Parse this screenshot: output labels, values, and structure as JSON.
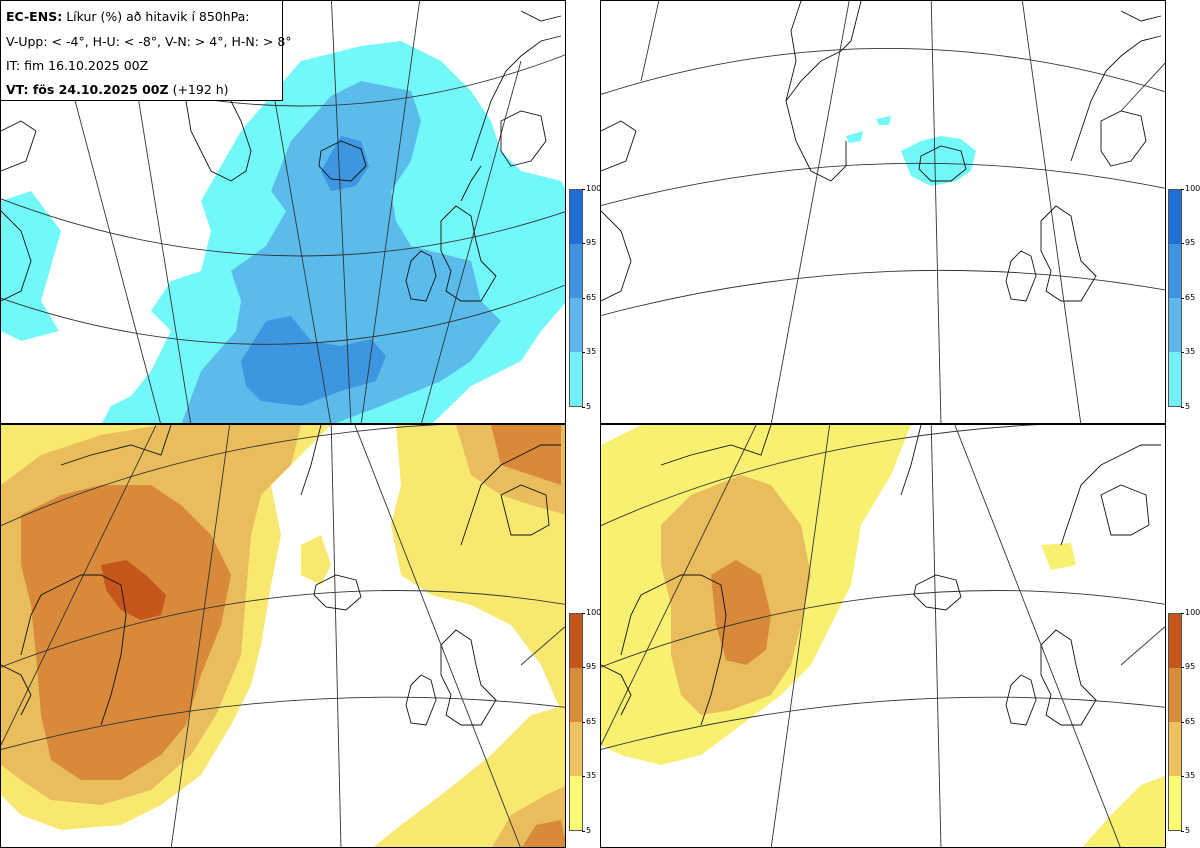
{
  "header": {
    "model": "EC-ENS:",
    "title": "Líkur (%) að hitavik í 850hPa:",
    "legend": "V-Upp: < -4°, H-U: < -8°, V-N: > 4°, H-N: > 8°",
    "initial_time": "IT: fim 16.10.2025 00Z",
    "valid_label": "VT: fös 24.10.2025 00Z",
    "lead_time": "(+192 h)"
  },
  "colorbars": {
    "ticks": [
      "100",
      "95",
      "65",
      "35",
      "5"
    ],
    "cold_colors": [
      "#1f6fd6",
      "#3f93e0",
      "#5fb6ec",
      "#72f0f8"
    ],
    "warm_colors": [
      "#c4561a",
      "#d98b3c",
      "#eec25e",
      "#fafc72"
    ]
  },
  "panels": [
    {
      "id": "upper-left",
      "variable": "probability anomaly < -4°",
      "palette": "cold"
    },
    {
      "id": "upper-right",
      "variable": "probability anomaly < -8°",
      "palette": "cold"
    },
    {
      "id": "lower-left",
      "variable": "probability anomaly > 4°",
      "palette": "warm"
    },
    {
      "id": "lower-right",
      "variable": "probability anomaly > 8°",
      "palette": "warm"
    }
  ]
}
